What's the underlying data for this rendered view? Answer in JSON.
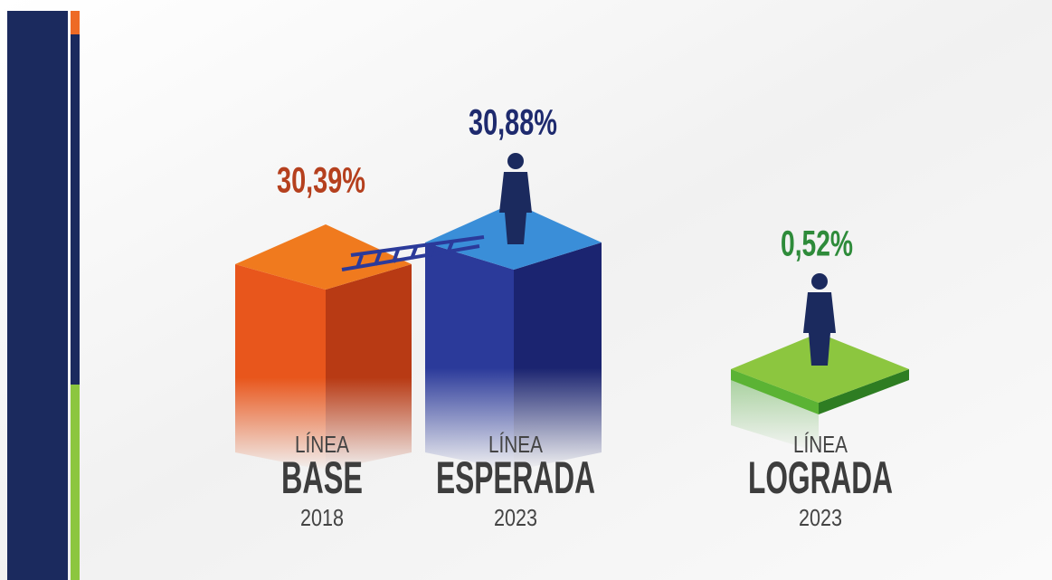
{
  "items": [
    {
      "value": "30,39%",
      "line1": "LÍNEA",
      "line2": "BASE",
      "year": "2018"
    },
    {
      "value": "30,88%",
      "line1": "LÍNEA",
      "line2": "ESPERADA",
      "year": "2023"
    },
    {
      "value": "0,52%",
      "line1": "LÍNEA",
      "line2": "LOGRADA",
      "year": "2023"
    }
  ]
}
